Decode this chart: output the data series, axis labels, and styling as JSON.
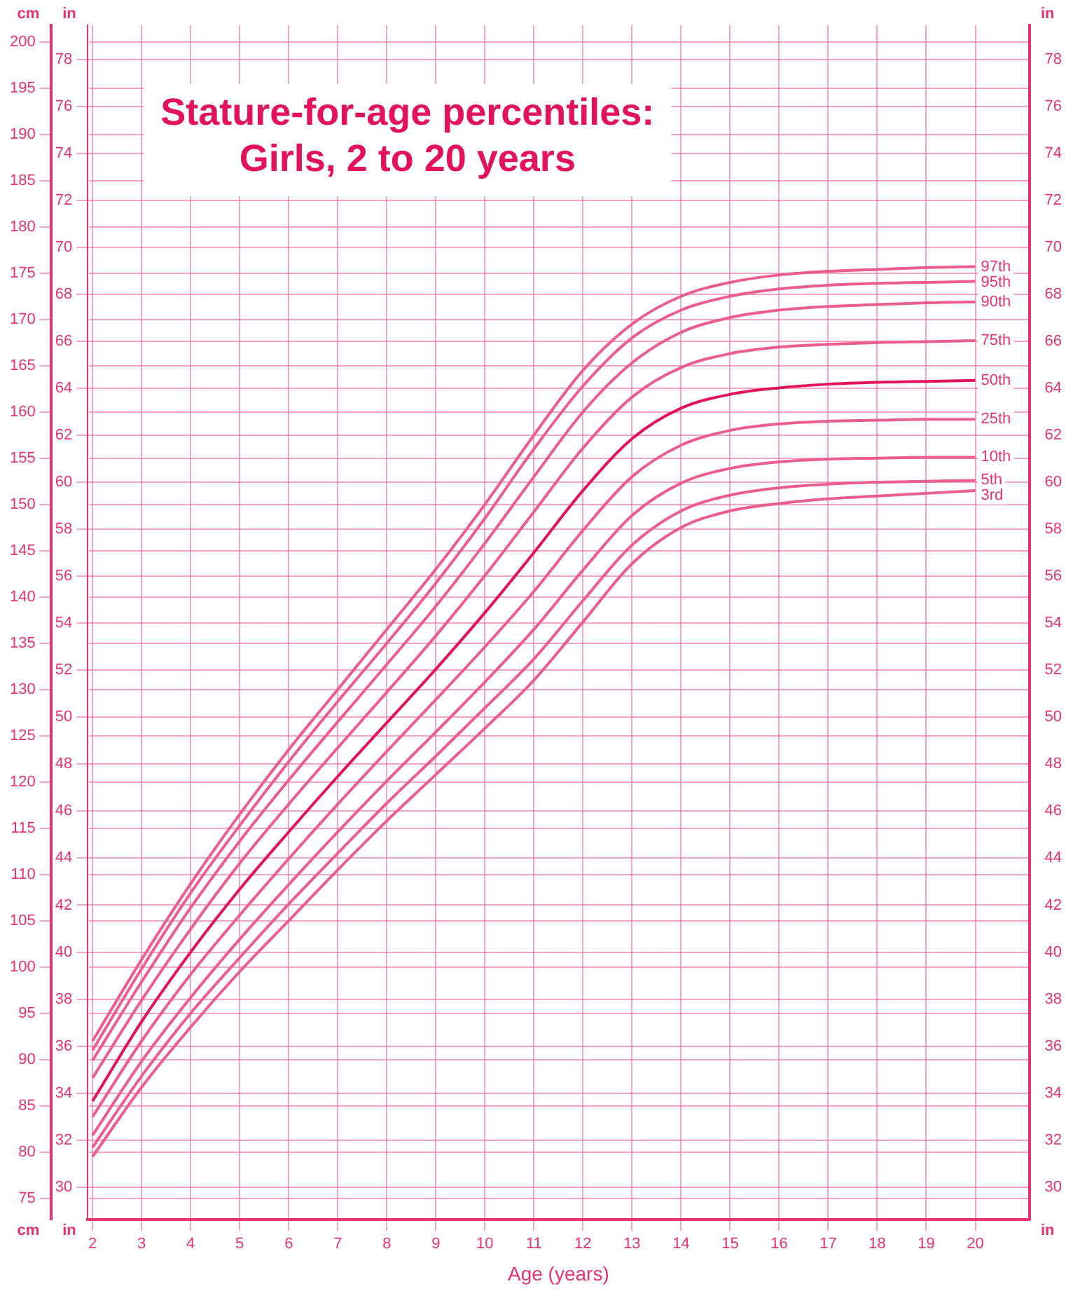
{
  "chart_data": {
    "type": "line",
    "title": "Stature-for-age percentiles:\nGirls, 2 to 20 years",
    "xlabel": "Age (years)",
    "ylabel": "cm",
    "y2label": "in",
    "y3label": "in",
    "x": [
      2,
      3,
      4,
      5,
      6,
      7,
      8,
      9,
      10,
      11,
      12,
      13,
      14,
      15,
      16,
      17,
      18,
      19,
      20
    ],
    "xlim": [
      1.9,
      21.1
    ],
    "xticks": [
      2,
      3,
      4,
      5,
      6,
      7,
      8,
      9,
      10,
      11,
      12,
      13,
      14,
      15,
      16,
      17,
      18,
      19,
      20
    ],
    "ylim": [
      72.7,
      201.8
    ],
    "yticks": [
      75,
      80,
      85,
      90,
      95,
      100,
      105,
      110,
      115,
      120,
      125,
      130,
      135,
      140,
      145,
      150,
      155,
      160,
      165,
      170,
      175,
      180,
      185,
      190,
      195,
      200
    ],
    "y2lim": [
      28.62,
      79.45
    ],
    "y2ticks": [
      30,
      32,
      34,
      36,
      38,
      40,
      42,
      44,
      46,
      48,
      50,
      52,
      54,
      56,
      58,
      60,
      62,
      64,
      66,
      68,
      70,
      72,
      74,
      76,
      78
    ],
    "y3lim": [
      28.62,
      79.45
    ],
    "y3ticks": [
      30,
      32,
      34,
      36,
      38,
      40,
      42,
      44,
      46,
      48,
      50,
      52,
      54,
      56,
      58,
      60,
      62,
      64,
      66,
      68,
      70,
      72,
      74,
      76,
      78
    ],
    "grid": true,
    "legend": false,
    "marker": "none",
    "line_style": "solid",
    "series": [
      {
        "name": "97th",
        "color": "#ec5d8c",
        "values": [
          92,
          100.8,
          109,
          116.5,
          123.5,
          130,
          136.5,
          143,
          150,
          157.5,
          164.5,
          169.5,
          172.5,
          174,
          174.8,
          175.2,
          175.4,
          175.6,
          175.7
        ]
      },
      {
        "name": "95th",
        "color": "#ec5d8c",
        "values": [
          91,
          99.8,
          108,
          115.3,
          122.2,
          128.7,
          135,
          141.5,
          148.5,
          156,
          162.8,
          168,
          171,
          172.5,
          173.3,
          173.7,
          173.9,
          174,
          174.1
        ]
      },
      {
        "name": "90th",
        "color": "#ec5d8c",
        "values": [
          89.9,
          98.4,
          106.4,
          113.6,
          120.2,
          126.5,
          132.7,
          139,
          145.8,
          153,
          160,
          165.3,
          168.6,
          170.2,
          171,
          171.4,
          171.6,
          171.8,
          171.9
        ]
      },
      {
        "name": "75th",
        "color": "#ec5d8c",
        "values": [
          88,
          96.4,
          104.1,
          111.2,
          117.6,
          123.7,
          129.7,
          135.8,
          142.3,
          149.2,
          156.1,
          161.6,
          164.8,
          166.3,
          167,
          167.3,
          167.5,
          167.6,
          167.7
        ]
      },
      {
        "name": "50th",
        "color": "#e2125c",
        "values": [
          85.5,
          94.1,
          101.6,
          108.4,
          114.6,
          120.6,
          126.4,
          132.2,
          138.3,
          144.8,
          151.5,
          157.1,
          160.4,
          161.9,
          162.6,
          163,
          163.2,
          163.3,
          163.4
        ]
      },
      {
        "name": "25th",
        "color": "#ec5d8c",
        "values": [
          83.8,
          92,
          99.2,
          105.6,
          111.7,
          117.6,
          123.3,
          128.9,
          134.6,
          140.6,
          147.2,
          153,
          156.4,
          158,
          158.7,
          159,
          159.1,
          159.2,
          159.2
        ]
      },
      {
        "name": "10th",
        "color": "#ec5d8c",
        "values": [
          81.8,
          89.8,
          96.7,
          103,
          108.9,
          114.6,
          120.1,
          125.4,
          130.8,
          136.5,
          142.9,
          148.8,
          152.3,
          153.9,
          154.6,
          154.9,
          155,
          155.1,
          155.1
        ]
      },
      {
        "name": "5th",
        "color": "#ec5d8c",
        "values": [
          80.5,
          88.2,
          95,
          101,
          106.8,
          112.3,
          117.7,
          122.8,
          128,
          133.3,
          139.6,
          145.6,
          149.3,
          151,
          151.8,
          152.2,
          152.4,
          152.5,
          152.6
        ]
      },
      {
        "name": "3rd",
        "color": "#ec5d8c",
        "values": [
          79.5,
          87,
          93.5,
          99.5,
          105,
          110.5,
          115.8,
          120.8,
          125.8,
          131,
          137.3,
          143.6,
          147.5,
          149.3,
          150.1,
          150.6,
          150.9,
          151.2,
          151.5
        ]
      }
    ]
  }
}
